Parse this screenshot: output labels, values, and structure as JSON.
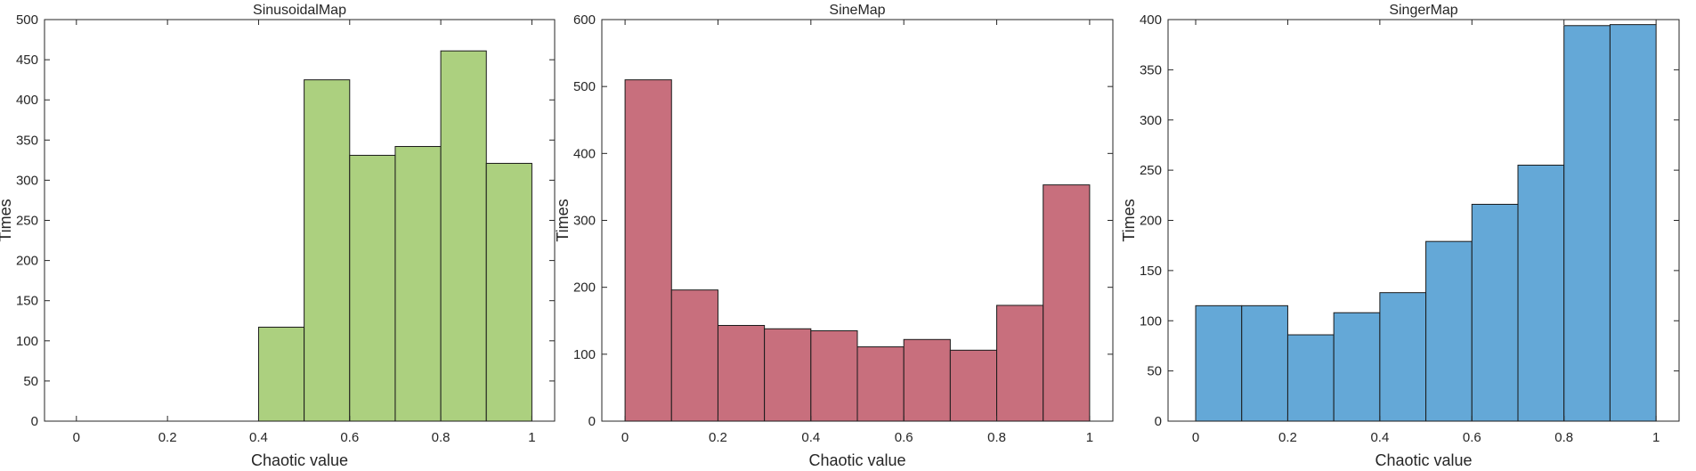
{
  "chart_data": [
    {
      "type": "bar",
      "title": "SinusoidalMap",
      "xlabel": "Chaotic value",
      "ylabel": "Times",
      "color": "#acd07f",
      "xlim": [
        -0.07,
        1.05
      ],
      "ylim": [
        0,
        500
      ],
      "xticks": [
        0,
        0.2,
        0.4,
        0.6,
        0.8,
        1
      ],
      "xtick_labels": [
        "0",
        "0.2",
        "0.4",
        "0.6",
        "0.8",
        "1"
      ],
      "yticks": [
        0,
        50,
        100,
        150,
        200,
        250,
        300,
        350,
        400,
        450,
        500
      ],
      "ytick_labels": [
        "0",
        "50",
        "100",
        "150",
        "200",
        "250",
        "300",
        "350",
        "400",
        "450",
        "500"
      ],
      "bins": [
        {
          "x0": 0.4,
          "x1": 0.5,
          "value": 117
        },
        {
          "x0": 0.5,
          "x1": 0.6,
          "value": 425
        },
        {
          "x0": 0.6,
          "x1": 0.7,
          "value": 331
        },
        {
          "x0": 0.7,
          "x1": 0.8,
          "value": 342
        },
        {
          "x0": 0.8,
          "x1": 0.9,
          "value": 461
        },
        {
          "x0": 0.9,
          "x1": 1.0,
          "value": 321
        }
      ]
    },
    {
      "type": "bar",
      "title": "SineMap",
      "xlabel": "Chaotic value",
      "ylabel": "Times",
      "color": "#c86f7d",
      "xlim": [
        -0.05,
        1.05
      ],
      "ylim": [
        0,
        600
      ],
      "xticks": [
        0,
        0.2,
        0.4,
        0.6,
        0.8,
        1
      ],
      "xtick_labels": [
        "0",
        "0.2",
        "0.4",
        "0.6",
        "0.8",
        "1"
      ],
      "yticks": [
        0,
        100,
        200,
        300,
        400,
        500,
        600
      ],
      "ytick_labels": [
        "0",
        "100",
        "200",
        "300",
        "400",
        "500",
        "600"
      ],
      "bins": [
        {
          "x0": 0.0,
          "x1": 0.1,
          "value": 510
        },
        {
          "x0": 0.1,
          "x1": 0.2,
          "value": 196
        },
        {
          "x0": 0.2,
          "x1": 0.3,
          "value": 143
        },
        {
          "x0": 0.3,
          "x1": 0.4,
          "value": 138
        },
        {
          "x0": 0.4,
          "x1": 0.5,
          "value": 135
        },
        {
          "x0": 0.5,
          "x1": 0.6,
          "value": 111
        },
        {
          "x0": 0.6,
          "x1": 0.7,
          "value": 122
        },
        {
          "x0": 0.7,
          "x1": 0.8,
          "value": 106
        },
        {
          "x0": 0.8,
          "x1": 0.9,
          "value": 173
        },
        {
          "x0": 0.9,
          "x1": 1.0,
          "value": 353
        }
      ]
    },
    {
      "type": "bar",
      "title": "SingerMap",
      "xlabel": "Chaotic value",
      "ylabel": "Times",
      "color": "#64a8d7",
      "xlim": [
        -0.06,
        1.05
      ],
      "ylim": [
        0,
        400
      ],
      "xticks": [
        0,
        0.2,
        0.4,
        0.6,
        0.8,
        1
      ],
      "xtick_labels": [
        "0",
        "0.2",
        "0.4",
        "0.6",
        "0.8",
        "1"
      ],
      "yticks": [
        0,
        50,
        100,
        150,
        200,
        250,
        300,
        350,
        400
      ],
      "ytick_labels": [
        "0",
        "50",
        "100",
        "150",
        "200",
        "250",
        "300",
        "350",
        "400"
      ],
      "bins": [
        {
          "x0": 0.0,
          "x1": 0.1,
          "value": 115
        },
        {
          "x0": 0.1,
          "x1": 0.2,
          "value": 115
        },
        {
          "x0": 0.2,
          "x1": 0.3,
          "value": 86
        },
        {
          "x0": 0.3,
          "x1": 0.4,
          "value": 108
        },
        {
          "x0": 0.4,
          "x1": 0.5,
          "value": 128
        },
        {
          "x0": 0.5,
          "x1": 0.6,
          "value": 179
        },
        {
          "x0": 0.6,
          "x1": 0.7,
          "value": 216
        },
        {
          "x0": 0.7,
          "x1": 0.8,
          "value": 255
        },
        {
          "x0": 0.8,
          "x1": 0.9,
          "value": 394
        },
        {
          "x0": 0.9,
          "x1": 1.0,
          "value": 395
        }
      ]
    }
  ]
}
